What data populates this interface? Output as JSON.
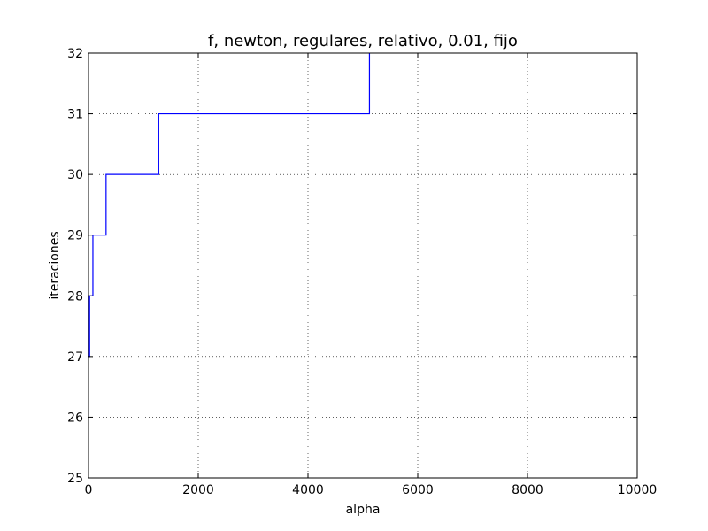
{
  "chart_data": {
    "type": "line",
    "title": "f, newton, regulares, relativo, 0.01, fijo",
    "xlabel": "alpha",
    "ylabel": "iteraciones",
    "xlim": [
      0,
      10000
    ],
    "ylim": [
      25,
      32
    ],
    "xticks": [
      0,
      2000,
      4000,
      6000,
      8000,
      10000
    ],
    "yticks": [
      25,
      26,
      27,
      28,
      29,
      30,
      31,
      32
    ],
    "grid": true,
    "line_style": "steps",
    "series": [
      {
        "color": "#0000ff",
        "x": [
          0,
          20,
          20,
          80,
          80,
          320,
          320,
          1280,
          1280,
          5120,
          5120
        ],
        "y": [
          27,
          27,
          28,
          28,
          29,
          29,
          30,
          30,
          31,
          31,
          32
        ]
      }
    ]
  }
}
